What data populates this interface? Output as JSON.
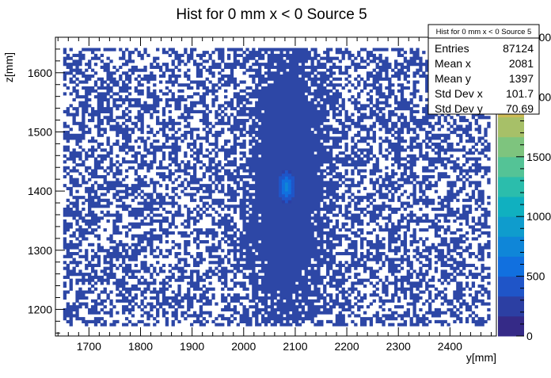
{
  "chart_data": {
    "type": "heatmap",
    "title": "Hist for 0 mm x < 0 Source 5",
    "xlabel": "y[mm]",
    "ylabel": "z[mm]",
    "xlim": [
      1635,
      2490
    ],
    "ylim": [
      1155,
      1660
    ],
    "data_x_range": [
      1650,
      2478
    ],
    "data_y_range": [
      1172,
      1640
    ],
    "x_ticks": [
      1700,
      1800,
      1900,
      2000,
      2100,
      2200,
      2300,
      2400
    ],
    "y_ticks": [
      1200,
      1300,
      1400,
      1500,
      1600
    ],
    "z_range": [
      0,
      2500
    ],
    "colorbar_ticks": [
      0,
      500,
      1000,
      1500,
      2000,
      2500
    ],
    "colorbar_palette": [
      "#352a87",
      "#2c3fa3",
      "#1f55c8",
      "#1170df",
      "#0f86d8",
      "#0f9ccd",
      "#10b0c0",
      "#2bbdac",
      "#54c396",
      "#7ec47e",
      "#a7c068",
      "#cdbb55",
      "#e9c13d",
      "#f8dd22",
      "#f9fb0e"
    ],
    "features": {
      "background_bin_color": "#2d47a6",
      "dense_band_y_range": [
        2005,
        2155
      ],
      "hotspot_center": [
        2080,
        1405
      ],
      "hotspot_peak_approx": 500
    },
    "stats_box": {
      "title": "Hist for 0 mm x < 0 Source 5",
      "rows": [
        {
          "label": "Entries",
          "value": "87124"
        },
        {
          "label": "Mean x",
          "value": "2081"
        },
        {
          "label": "Mean y",
          "value": "1397"
        },
        {
          "label": "Std Dev x",
          "value": "101.7"
        },
        {
          "label": "Std Dev y",
          "value": "70.69"
        }
      ]
    }
  }
}
